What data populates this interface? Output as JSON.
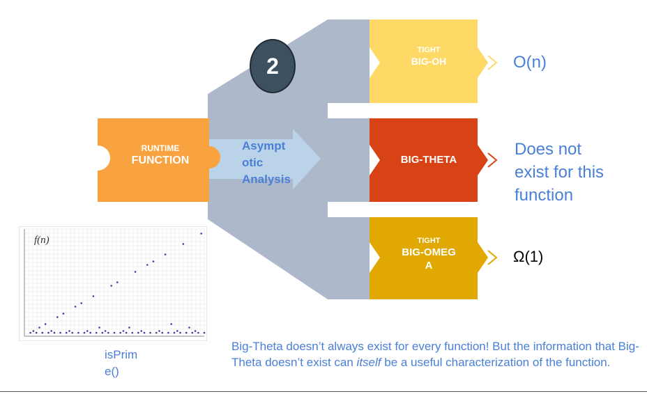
{
  "step_number": "2",
  "runtime_box": {
    "line1": "RUNTIME",
    "line2": "FUNCTION"
  },
  "arrow_label": {
    "line1": "Asympt",
    "line2": "otic",
    "line3": "Analysis"
  },
  "bounds": [
    {
      "id": "big-oh",
      "line1": "TIGHT",
      "line2": "BIG-OH",
      "color": "#ffd966",
      "result": "O(n)"
    },
    {
      "id": "big-theta",
      "line1": "",
      "line2": "BIG-THETA",
      "color": "#d84315",
      "result_lines": [
        "Does not",
        "exist for this",
        "function"
      ]
    },
    {
      "id": "big-omega",
      "line1": "TIGHT",
      "line2": "BIG-OMEG",
      "line3": "A",
      "color": "#e0a800",
      "result": "Ω(1)"
    }
  ],
  "plot": {
    "ylabel": "f(n)",
    "caption_line1": "isPrim",
    "caption_line2": "e()"
  },
  "note": {
    "part1": "Big-Theta doesn’t always exist for every function! But the information that Big-Theta doesn’t exist can ",
    "emphasis": "itself",
    "part2": " be a useful characterization of the function."
  },
  "colors": {
    "funnel": "#adb9ca",
    "runtime": "#f8a340",
    "arrow": "#bdd7ee",
    "text_blue": "#4a7fd6"
  }
}
